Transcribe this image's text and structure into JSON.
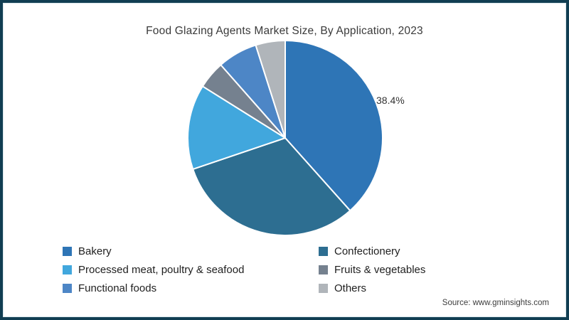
{
  "window": {
    "background": "#ffffff",
    "border_color": "#113e52"
  },
  "chart_data": {
    "type": "pie",
    "title": "Food Glazing Agents Market Size, By Application, 2023",
    "source": "Source: www.gminsights.com",
    "start_angle_deg": 0,
    "direction": "clockwise",
    "separator_color": "#ffffff",
    "data_label": {
      "slice": "Bakery",
      "text": "38.4%"
    },
    "slices": [
      {
        "label": "Bakery",
        "value": 38.4,
        "color": "#2e75b6"
      },
      {
        "label": "Confectionery",
        "value": 31.4,
        "color": "#2d6e91"
      },
      {
        "label": "Processed meat, poultry & seafood",
        "value": 14.1,
        "color": "#41a7dd"
      },
      {
        "label": "Fruits & vegetables",
        "value": 4.6,
        "color": "#75818f"
      },
      {
        "label": "Functional foods",
        "value": 6.6,
        "color": "#4d86c6"
      },
      {
        "label": "Others",
        "value": 4.9,
        "color": "#b0b5ba"
      }
    ],
    "legend": {
      "position": "bottom",
      "columns": 2,
      "row_major_order": [
        "Bakery",
        "Confectionery",
        "Processed meat, poultry & seafood",
        "Fruits & vegetables",
        "Functional foods",
        "Others"
      ]
    }
  }
}
